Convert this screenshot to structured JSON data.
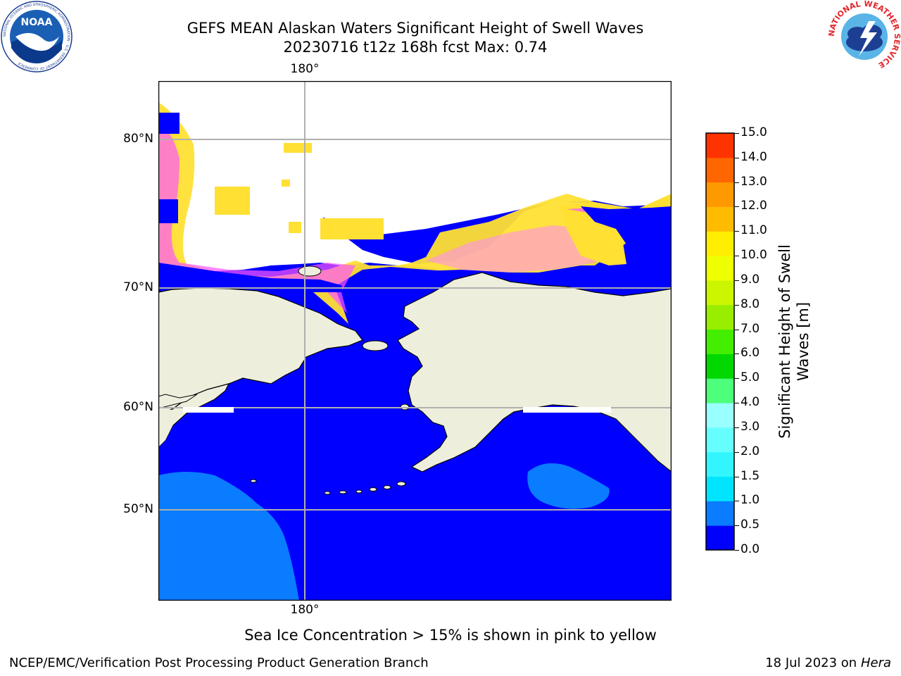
{
  "title_line1": "GEFS MEAN Alaskan Waters Significant Height of Swell Waves",
  "title_line2": "20230716 t12z 168h fcst   Max: 0.74",
  "map": {
    "lat_labels": [
      "80°N",
      "70°N",
      "60°N",
      "50°N"
    ],
    "lon_label_top": "180°",
    "lon_label_bottom": "180°",
    "colors": {
      "ocean_deep": "#0000ff",
      "ocean_swell": "#0a7cff",
      "land": "#eeeedd",
      "ice_pink": "#ff55ff",
      "ice_yellow": "#ffe033",
      "grid": "#b0b0b0"
    }
  },
  "colorbar": {
    "label_line1": "Significant Height of Swell",
    "label_line2": "Waves [m]",
    "ticks": [
      "0.0",
      "0.5",
      "1.0",
      "1.5",
      "2.0",
      "3.0",
      "4.0",
      "5.0",
      "6.0",
      "7.0",
      "8.0",
      "9.0",
      "10.0",
      "11.0",
      "12.0",
      "13.0",
      "14.0",
      "15.0"
    ],
    "colors": [
      "#0000ff",
      "#0a7cff",
      "#00e5ff",
      "#33f5ff",
      "#66ffff",
      "#99ffff",
      "#4dff7a",
      "#00d800",
      "#44ee00",
      "#99ee00",
      "#ccf500",
      "#eeff00",
      "#ffee00",
      "#ffbb00",
      "#ff9900",
      "#ff6600",
      "#ff3300",
      "#ff0000"
    ]
  },
  "note": "Sea Ice Concentration > 15% is shown in pink to yellow",
  "footer_left": "NCEP/EMC/Verification Post Processing Product Generation Branch",
  "footer_right_date": "18 Jul 2023 on ",
  "footer_right_host": "Hera",
  "logos": {
    "noaa_text": "NOAA",
    "noaa_ring": "NATIONAL OCEANIC AND ATMOSPHERIC ADMINISTRATION · U.S. DEPARTMENT OF COMMERCE",
    "nws_ring": "NATIONAL WEATHER SERVICE"
  }
}
